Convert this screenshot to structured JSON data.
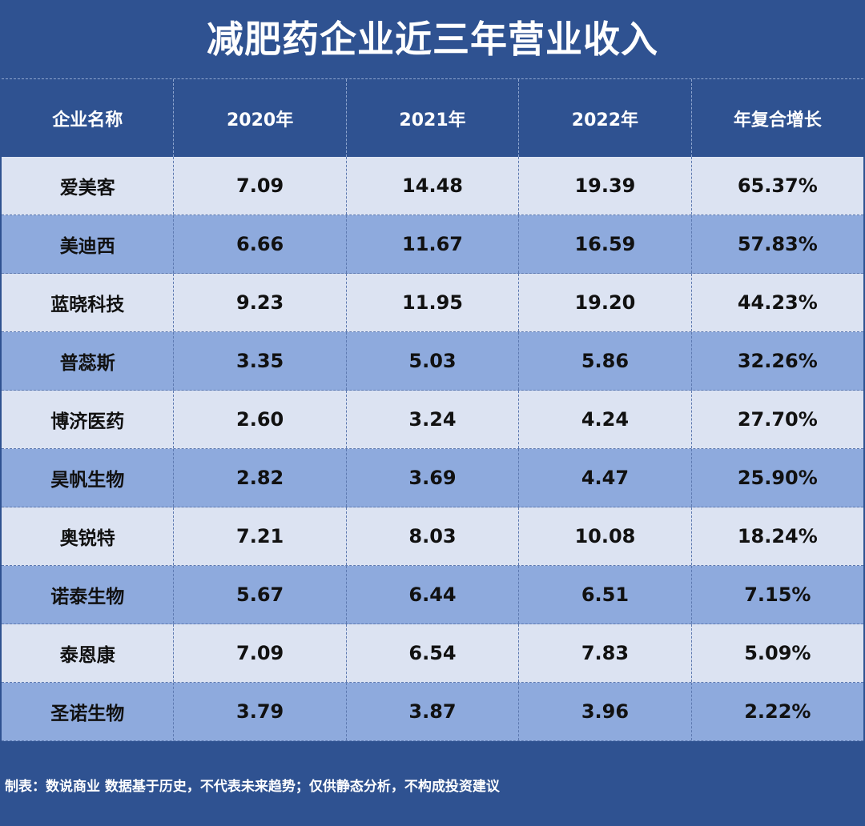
{
  "title": "减肥药企业近三年营业收入",
  "footer": "制表：数说商业 数据基于历史，不代表未来趋势；仅供静态分析，不构成投资建议",
  "colors": {
    "background": "#2f5291",
    "row_light": "#dce3f2",
    "row_dark": "#8eaadd"
  },
  "chart_data": {
    "type": "table",
    "columns": [
      "企业名称",
      "2020年",
      "2021年",
      "2022年",
      "年复合增长"
    ],
    "rows": [
      [
        "爱美客",
        "7.09",
        "14.48",
        "19.39",
        "65.37%"
      ],
      [
        "美迪西",
        "6.66",
        "11.67",
        "16.59",
        "57.83%"
      ],
      [
        "蓝晓科技",
        "9.23",
        "11.95",
        "19.20",
        "44.23%"
      ],
      [
        "普蕊斯",
        "3.35",
        "5.03",
        "5.86",
        "32.26%"
      ],
      [
        "博济医药",
        "2.60",
        "3.24",
        "4.24",
        "27.70%"
      ],
      [
        "昊帆生物",
        "2.82",
        "3.69",
        "4.47",
        "25.90%"
      ],
      [
        "奥锐特",
        "7.21",
        "8.03",
        "10.08",
        "18.24%"
      ],
      [
        "诺泰生物",
        "5.67",
        "6.44",
        "6.51",
        "7.15%"
      ],
      [
        "泰恩康",
        "7.09",
        "6.54",
        "7.83",
        "5.09%"
      ],
      [
        "圣诺生物",
        "3.79",
        "3.87",
        "3.96",
        "2.22%"
      ]
    ]
  }
}
